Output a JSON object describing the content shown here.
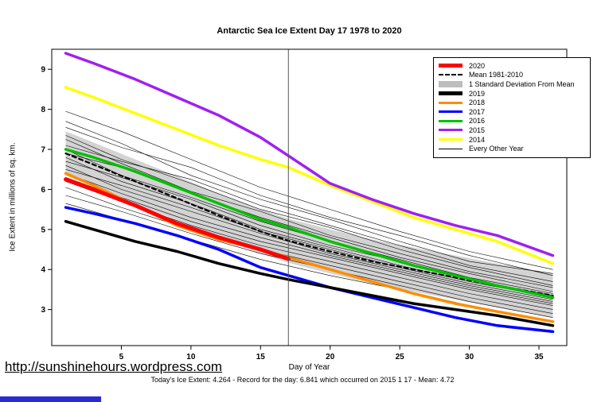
{
  "title": "Antarctic Sea Ice Extent Day 17 1978 to 2020",
  "xlabel": "Day of Year",
  "ylabel": "Ice Extent in millions of sq. km.",
  "footer": "Today's Ice Extent: 4.264  - Record for the day: 6.841 which occurred on 2015 1 17  - Mean: 4.72",
  "url": "http://sunshinehours.wordpress.com",
  "chart_data": {
    "type": "line",
    "title": "Antarctic Sea Ice Extent Day 17 1978 to 2020",
    "xlabel": "Day of Year",
    "ylabel": "Ice Extent in millions of sq. km.",
    "xlim": [
      0,
      37
    ],
    "ylim": [
      2.1,
      9.5
    ],
    "x_ticks": [
      5,
      10,
      15,
      20,
      25,
      30,
      35
    ],
    "y_ticks": [
      3,
      4,
      5,
      6,
      7,
      8,
      9
    ],
    "vline_x": 17,
    "band": {
      "name": "1 Standard Deviation From Mean",
      "color": "#c8c8c8",
      "x": [
        1,
        3,
        6,
        9,
        12,
        15,
        17,
        20,
        23,
        26,
        29,
        32,
        36
      ],
      "upper": [
        7.45,
        7.17,
        6.75,
        6.33,
        5.9,
        5.5,
        5.27,
        5.0,
        4.75,
        4.55,
        4.35,
        4.15,
        3.9
      ],
      "lower": [
        6.35,
        6.07,
        5.65,
        5.23,
        4.8,
        4.4,
        4.17,
        3.9,
        3.65,
        3.45,
        3.25,
        3.05,
        2.8
      ]
    },
    "series": [
      {
        "name": "Mean 1981-2010",
        "color": "#000000",
        "width": 2.2,
        "dash": "5,4",
        "x": [
          1,
          3,
          6,
          9,
          12,
          15,
          17,
          20,
          23,
          26,
          29,
          32,
          36
        ],
        "y": [
          6.9,
          6.62,
          6.2,
          5.78,
          5.35,
          4.95,
          4.72,
          4.45,
          4.2,
          4.0,
          3.8,
          3.6,
          3.35
        ]
      },
      {
        "name": "2014",
        "color": "#ffff00",
        "width": 3.5,
        "x": [
          1,
          3,
          6,
          9,
          12,
          15,
          17,
          20,
          23,
          26,
          29,
          32,
          36
        ],
        "y": [
          8.55,
          8.3,
          7.9,
          7.5,
          7.1,
          6.75,
          6.55,
          6.1,
          5.7,
          5.3,
          5.0,
          4.7,
          4.15
        ]
      },
      {
        "name": "2015",
        "color": "#a020f0",
        "width": 3.5,
        "x": [
          1,
          3,
          6,
          9,
          12,
          15,
          17,
          20,
          23,
          26,
          29,
          32,
          36
        ],
        "y": [
          9.4,
          9.15,
          8.75,
          8.3,
          7.85,
          7.3,
          6.84,
          6.15,
          5.75,
          5.4,
          5.1,
          4.85,
          4.35
        ]
      },
      {
        "name": "2016",
        "color": "#00c000",
        "width": 3.5,
        "x": [
          1,
          3,
          6,
          9,
          12,
          15,
          17,
          20,
          23,
          26,
          29,
          32,
          36
        ],
        "y": [
          7.0,
          6.8,
          6.45,
          6.05,
          5.65,
          5.25,
          5.05,
          4.7,
          4.4,
          4.1,
          3.85,
          3.6,
          3.3
        ]
      },
      {
        "name": "2017",
        "color": "#0000ff",
        "width": 3.5,
        "x": [
          1,
          3,
          6,
          9,
          12,
          15,
          17,
          20,
          23,
          26,
          29,
          32,
          36
        ],
        "y": [
          5.55,
          5.4,
          5.15,
          4.85,
          4.5,
          4.05,
          3.85,
          3.55,
          3.3,
          3.05,
          2.8,
          2.6,
          2.45
        ]
      },
      {
        "name": "2018",
        "color": "#ff8c00",
        "width": 3.5,
        "x": [
          1,
          3,
          6,
          9,
          12,
          15,
          17,
          20,
          23,
          26,
          29,
          32,
          36
        ],
        "y": [
          6.4,
          6.1,
          5.6,
          5.1,
          4.75,
          4.5,
          4.3,
          4.0,
          3.7,
          3.4,
          3.15,
          2.95,
          2.7
        ]
      },
      {
        "name": "2019",
        "color": "#000000",
        "width": 3.5,
        "x": [
          1,
          3,
          6,
          9,
          12,
          15,
          17,
          20,
          23,
          26,
          29,
          32,
          36
        ],
        "y": [
          5.2,
          5.0,
          4.7,
          4.45,
          4.15,
          3.9,
          3.75,
          3.55,
          3.35,
          3.15,
          3.0,
          2.85,
          2.6
        ]
      },
      {
        "name": "2020",
        "color": "#ff0000",
        "width": 5,
        "x": [
          1,
          3,
          6,
          9,
          12,
          15,
          17
        ],
        "y": [
          6.25,
          6.0,
          5.6,
          5.15,
          4.8,
          4.5,
          4.264
        ]
      }
    ],
    "other_years": {
      "name": "Every Other Year",
      "color": "#000000",
      "width": 0.6,
      "x": [
        1,
        5,
        10,
        15,
        20,
        25,
        30,
        36
      ],
      "lines": [
        [
          7.95,
          7.45,
          6.75,
          6.05,
          5.5,
          4.95,
          4.45,
          4.0
        ],
        [
          7.7,
          7.15,
          6.35,
          5.75,
          5.25,
          4.7,
          4.2,
          3.9
        ],
        [
          7.55,
          7.05,
          6.55,
          5.85,
          5.3,
          4.85,
          4.35,
          3.85
        ],
        [
          7.35,
          6.75,
          6.15,
          5.5,
          5.05,
          4.5,
          4.05,
          3.6
        ],
        [
          7.25,
          6.65,
          5.95,
          5.45,
          4.85,
          4.4,
          3.95,
          3.55
        ],
        [
          7.1,
          6.7,
          6.25,
          5.6,
          5.1,
          4.6,
          4.1,
          3.7
        ],
        [
          7.0,
          6.35,
          5.8,
          5.2,
          4.7,
          4.25,
          3.8,
          3.4
        ],
        [
          6.9,
          6.55,
          5.9,
          5.3,
          4.8,
          4.3,
          3.9,
          3.45
        ],
        [
          6.8,
          6.2,
          5.65,
          5.0,
          4.55,
          4.1,
          3.7,
          3.3
        ],
        [
          6.7,
          6.3,
          5.75,
          5.1,
          4.6,
          4.2,
          3.75,
          3.35
        ],
        [
          6.6,
          6.0,
          5.45,
          4.9,
          4.4,
          4.0,
          3.6,
          3.2
        ],
        [
          6.5,
          6.1,
          5.55,
          4.95,
          4.5,
          4.05,
          3.65,
          3.25
        ],
        [
          6.4,
          5.9,
          5.3,
          4.8,
          4.35,
          3.95,
          3.55,
          3.15
        ],
        [
          6.3,
          5.8,
          5.2,
          4.7,
          4.3,
          3.9,
          3.5,
          3.1
        ],
        [
          6.2,
          5.7,
          5.1,
          4.6,
          4.2,
          3.8,
          3.4,
          3.0
        ],
        [
          6.05,
          5.55,
          5.0,
          4.5,
          4.1,
          3.7,
          3.3,
          2.9
        ],
        [
          5.85,
          5.45,
          4.9,
          4.4,
          4.0,
          3.6,
          3.2,
          2.8
        ],
        [
          5.65,
          5.25,
          4.75,
          4.25,
          3.85,
          3.5,
          3.1,
          2.7
        ]
      ]
    }
  },
  "legend": {
    "items": [
      {
        "label": "2020",
        "color": "#ff0000",
        "lw": 5
      },
      {
        "label": "Mean 1981-2010",
        "color": "#000000",
        "lw": 2,
        "dash": true
      },
      {
        "label": "1 Standard Deviation From Mean",
        "color": "#bdbdbd",
        "lw": 8
      },
      {
        "label": "2019",
        "color": "#000000",
        "lw": 5
      },
      {
        "label": "2018",
        "color": "#ff8c00",
        "lw": 3
      },
      {
        "label": "2017",
        "color": "#0000ff",
        "lw": 3
      },
      {
        "label": "2016",
        "color": "#00c000",
        "lw": 3
      },
      {
        "label": "2015",
        "color": "#a020f0",
        "lw": 3
      },
      {
        "label": "2014",
        "color": "#ffff00",
        "lw": 3
      },
      {
        "label": "Every Other Year",
        "color": "#000000",
        "lw": 1
      }
    ]
  }
}
